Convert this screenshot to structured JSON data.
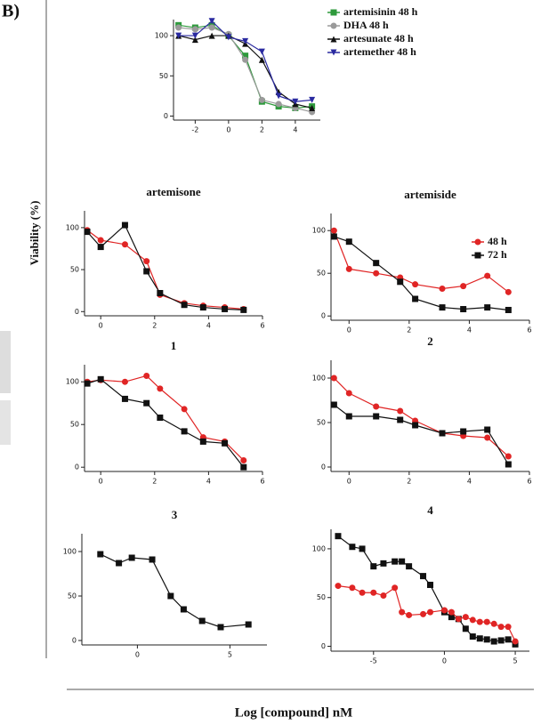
{
  "panel_label": "B)",
  "y_label": "Viability (%)",
  "x_label": "Log [compound] nM",
  "chart_data": [
    {
      "type": "scatter",
      "legend": "right",
      "xlim": [
        -3.3,
        5.5
      ],
      "ylim": [
        -5,
        120
      ],
      "xticks": [
        -2,
        0,
        2,
        4
      ],
      "yticks": [
        0,
        50,
        100
      ],
      "x": [
        -3,
        -2,
        -1,
        0,
        1,
        2,
        3,
        4,
        5
      ],
      "series": [
        {
          "name": "artemisinin 48 h",
          "color": "#2e9a3c",
          "marker": "square",
          "values": [
            113,
            110,
            113,
            100,
            75,
            18,
            12,
            10,
            12
          ]
        },
        {
          "name": "DHA 48 h",
          "color": "#9a9a9a",
          "marker": "circle",
          "values": [
            110,
            108,
            110,
            102,
            70,
            20,
            15,
            10,
            5
          ]
        },
        {
          "name": "artesunate 48 h",
          "color": "#111111",
          "marker": "triangle",
          "values": [
            100,
            95,
            100,
            100,
            90,
            70,
            30,
            15,
            10
          ]
        },
        {
          "name": "artemether 48 h",
          "color": "#2a2aa0",
          "marker": "triangle-down",
          "values": [
            100,
            100,
            118,
            98,
            93,
            80,
            25,
            18,
            20
          ]
        }
      ]
    },
    {
      "type": "scatter",
      "title": "artemisone",
      "xlim": [
        -0.6,
        6
      ],
      "ylim": [
        -5,
        120
      ],
      "xticks": [
        0,
        2,
        4,
        6
      ],
      "yticks": [
        0,
        50,
        100
      ],
      "x": [
        -0.5,
        0,
        0.9,
        1.7,
        2.2,
        3.1,
        3.8,
        4.6,
        5.3
      ],
      "series": [
        {
          "color": "#e02525",
          "marker": "circle",
          "values": [
            97,
            85,
            80,
            60,
            20,
            10,
            7,
            5,
            3
          ]
        },
        {
          "color": "#111111",
          "marker": "square",
          "values": [
            95,
            77,
            103,
            48,
            22,
            8,
            5,
            3,
            2
          ]
        }
      ]
    },
    {
      "type": "scatter",
      "title": "artemiside",
      "legend": "top-right",
      "xlim": [
        -0.6,
        6
      ],
      "ylim": [
        -5,
        120
      ],
      "xticks": [
        0,
        2,
        4,
        6
      ],
      "yticks": [
        0,
        50,
        100
      ],
      "x": [
        -0.5,
        0,
        0.9,
        1.7,
        2.2,
        3.1,
        3.8,
        4.6,
        5.3
      ],
      "series": [
        {
          "name": "48 h",
          "color": "#e02525",
          "marker": "circle",
          "values": [
            100,
            55,
            50,
            45,
            37,
            32,
            35,
            47,
            28
          ]
        },
        {
          "name": "72 h",
          "color": "#111111",
          "marker": "square",
          "values": [
            93,
            87,
            62,
            40,
            20,
            10,
            8,
            10,
            7
          ]
        }
      ]
    },
    {
      "type": "scatter",
      "title": "1",
      "xlim": [
        -0.6,
        6
      ],
      "ylim": [
        -5,
        120
      ],
      "xticks": [
        0,
        2,
        4,
        6
      ],
      "yticks": [
        0,
        50,
        100
      ],
      "x": [
        -0.5,
        0,
        0.9,
        1.7,
        2.2,
        3.1,
        3.8,
        4.6,
        5.3
      ],
      "series": [
        {
          "color": "#e02525",
          "marker": "circle",
          "values": [
            100,
            102,
            100,
            107,
            92,
            68,
            35,
            30,
            8
          ]
        },
        {
          "color": "#111111",
          "marker": "square",
          "values": [
            98,
            103,
            80,
            75,
            58,
            42,
            30,
            28,
            0
          ]
        }
      ]
    },
    {
      "type": "scatter",
      "title": "2",
      "xlim": [
        -0.6,
        6
      ],
      "ylim": [
        -5,
        120
      ],
      "xticks": [
        0,
        2,
        4,
        6
      ],
      "yticks": [
        0,
        50,
        100
      ],
      "x": [
        -0.5,
        0,
        0.9,
        1.7,
        2.2,
        3.1,
        3.8,
        4.6,
        5.3
      ],
      "series": [
        {
          "color": "#e02525",
          "marker": "circle",
          "values": [
            100,
            83,
            68,
            63,
            52,
            38,
            35,
            33,
            12
          ]
        },
        {
          "color": "#111111",
          "marker": "square",
          "values": [
            70,
            57,
            57,
            53,
            47,
            38,
            40,
            42,
            3
          ]
        }
      ]
    },
    {
      "type": "scatter",
      "title": "3",
      "xlim": [
        -3,
        7
      ],
      "ylim": [
        -5,
        120
      ],
      "xticks": [
        0,
        5
      ],
      "yticks": [
        0,
        50,
        100
      ],
      "x": [
        -2,
        -1,
        -0.3,
        0.8,
        1.8,
        2.5,
        3.5,
        4.5,
        6
      ],
      "series": [
        {
          "color": "#111111",
          "marker": "square",
          "values": [
            97,
            87,
            93,
            91,
            50,
            35,
            22,
            15,
            18
          ]
        }
      ]
    },
    {
      "type": "scatter",
      "title": "4",
      "xlim": [
        -8,
        6
      ],
      "ylim": [
        -5,
        120
      ],
      "xticks": [
        -5,
        0,
        5
      ],
      "yticks": [
        0,
        50,
        100
      ],
      "x": [
        -7.5,
        -6.5,
        -5.8,
        -5,
        -4.3,
        -3.5,
        -3,
        -2.5,
        -1.5,
        -1,
        0,
        0.5,
        1,
        1.5,
        2,
        2.5,
        3,
        3.5,
        4,
        4.5,
        5
      ],
      "series": [
        {
          "color": "#111111",
          "marker": "square",
          "values": [
            113,
            102,
            100,
            82,
            85,
            87,
            87,
            82,
            72,
            63,
            35,
            30,
            28,
            18,
            10,
            8,
            7,
            5,
            6,
            7,
            2
          ]
        },
        {
          "color": "#e02525",
          "marker": "circle",
          "values": [
            62,
            60,
            55,
            55,
            52,
            60,
            35,
            32,
            33,
            35,
            37,
            35,
            28,
            30,
            27,
            25,
            25,
            23,
            20,
            20,
            5
          ]
        }
      ]
    }
  ]
}
